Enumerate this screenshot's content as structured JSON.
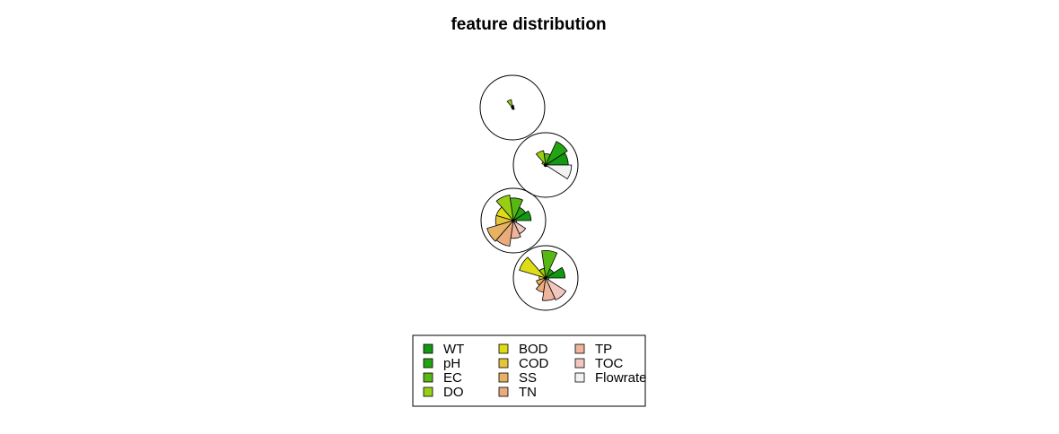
{
  "chart_data": {
    "type": "star-segment",
    "title": "feature distribution",
    "features": [
      {
        "name": "WT",
        "color": "#129812"
      },
      {
        "name": "pH",
        "color": "#25a412"
      },
      {
        "name": "EC",
        "color": "#57b814"
      },
      {
        "name": "DO",
        "color": "#98cf16"
      },
      {
        "name": "BOD",
        "color": "#dedc16"
      },
      {
        "name": "COD",
        "color": "#e4c43c"
      },
      {
        "name": "SS",
        "color": "#e8b265"
      },
      {
        "name": "TN",
        "color": "#eaab7d"
      },
      {
        "name": "TP",
        "color": "#eeb49c"
      },
      {
        "name": "TOC",
        "color": "#f2c7c0"
      },
      {
        "name": "Flowrate",
        "color": "#f2f2f2"
      }
    ],
    "observations": [
      {
        "values": [
          0.05,
          0.05,
          0.08,
          0.25,
          0.04,
          0.02,
          0.02,
          0.03,
          0.05,
          0.07,
          0.03
        ]
      },
      {
        "values": [
          0.7,
          0.8,
          0.35,
          0.45,
          0.12,
          0.05,
          0.05,
          0.05,
          0.05,
          0.05,
          0.8
        ]
      },
      {
        "values": [
          0.55,
          0.45,
          0.7,
          0.8,
          0.55,
          0.55,
          0.85,
          0.8,
          0.55,
          0.45,
          0.1
        ]
      },
      {
        "values": [
          0.6,
          0.3,
          0.85,
          0.3,
          0.85,
          0.2,
          0.3,
          0.45,
          0.7,
          0.75,
          0.1
        ]
      }
    ],
    "legend": {
      "position": "bottom",
      "columns": 3
    }
  }
}
